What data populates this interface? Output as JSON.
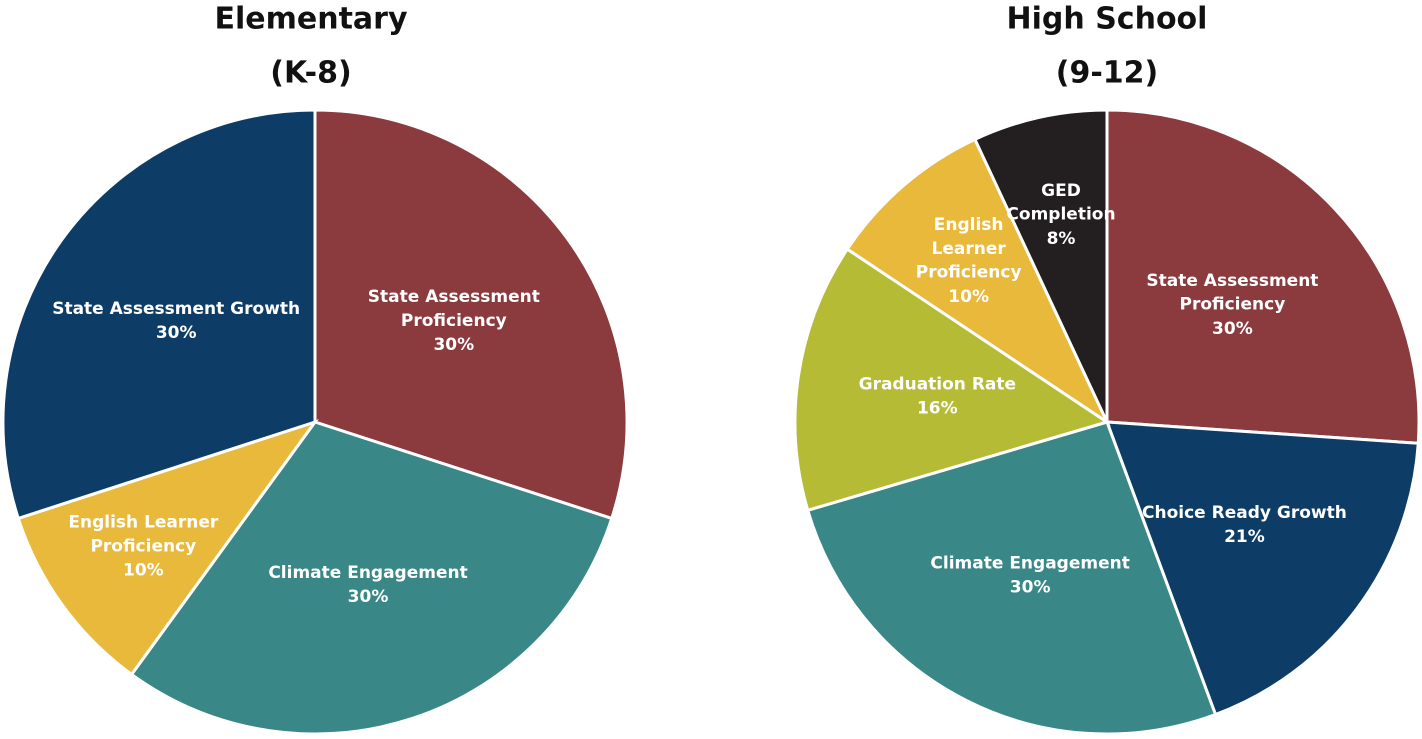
{
  "chart_data": [
    {
      "type": "pie",
      "title": "Elementary",
      "subtitle": "(K-8)",
      "categories": [
        "State Assessment Proficiency",
        "Climate Engagement",
        "English Learner Proficiency",
        "State Assessment Growth"
      ],
      "values": [
        30,
        30,
        10,
        30
      ],
      "value_labels": [
        "30%",
        "30%",
        "10%",
        "30%"
      ],
      "colors": [
        "#8b3a3e",
        "#3a8787",
        "#e9b93c",
        "#0d3d66"
      ]
    },
    {
      "type": "pie",
      "title": "High School",
      "subtitle": "(9-12)",
      "categories": [
        "State Assessment Proficiency",
        "Choice Ready Growth",
        "Climate Engagement",
        "Graduation Rate",
        "English Learner Proficiency",
        "GED Completion"
      ],
      "values": [
        30,
        21,
        30,
        16,
        10,
        8
      ],
      "value_labels": [
        "30%",
        "21%",
        "30%",
        "16%",
        "10%",
        "8%"
      ],
      "colors": [
        "#8b3a3e",
        "#0d3d66",
        "#3a8787",
        "#b5bb35",
        "#e9b93c",
        "#231f20"
      ]
    }
  ]
}
